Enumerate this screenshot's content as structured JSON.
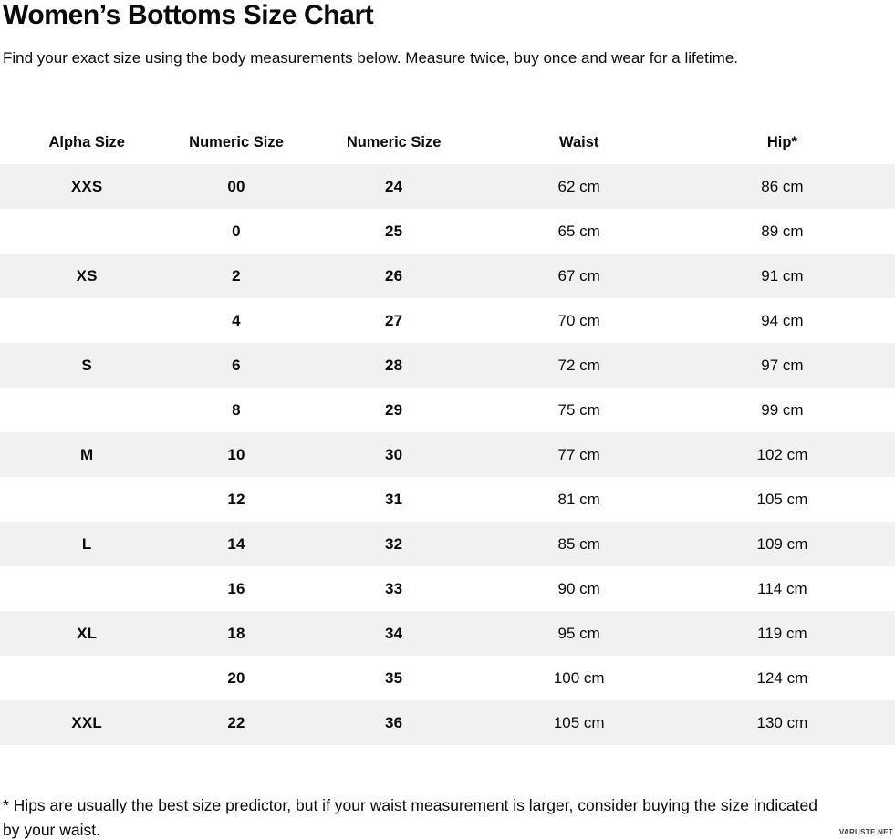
{
  "page": {
    "title": "Women’s Bottoms Size Chart",
    "subtitle": "Find your exact size using the body measurements below. Measure twice, buy once and wear for a lifetime.",
    "footnote": "* Hips are usually the best size predictor, but if your waist measurement is larger, consider buying the size indicated by your waist.",
    "watermark": "VARUSTE.NET"
  },
  "table": {
    "headers": [
      "Alpha Size",
      "Numeric Size",
      "Numeric Size",
      "Waist",
      "Hip*"
    ],
    "header_keys": [
      "alpha-size",
      "numeric-size-us",
      "numeric-size-inch",
      "waist",
      "hip"
    ],
    "rows": [
      [
        "XXS",
        "00",
        "24",
        "62 cm",
        "86 cm"
      ],
      [
        "",
        "0",
        "25",
        "65 cm",
        "89 cm"
      ],
      [
        "XS",
        "2",
        "26",
        "67 cm",
        "91 cm"
      ],
      [
        "",
        "4",
        "27",
        "70 cm",
        "94 cm"
      ],
      [
        "S",
        "6",
        "28",
        "72 cm",
        "97 cm"
      ],
      [
        "",
        "8",
        "29",
        "75 cm",
        "99 cm"
      ],
      [
        "M",
        "10",
        "30",
        "77 cm",
        "102 cm"
      ],
      [
        "",
        "12",
        "31",
        "81 cm",
        "105 cm"
      ],
      [
        "L",
        "14",
        "32",
        "85 cm",
        "109 cm"
      ],
      [
        "",
        "16",
        "33",
        "90 cm",
        "114 cm"
      ],
      [
        "XL",
        "18",
        "34",
        "95 cm",
        "119 cm"
      ],
      [
        "",
        "20",
        "35",
        "100 cm",
        "124 cm"
      ],
      [
        "XXL",
        "22",
        "36",
        "105 cm",
        "130 cm"
      ]
    ]
  },
  "colors": {
    "stripe": "#f1f1f1",
    "background": "#ffffff",
    "text": "#0a0a0a"
  }
}
